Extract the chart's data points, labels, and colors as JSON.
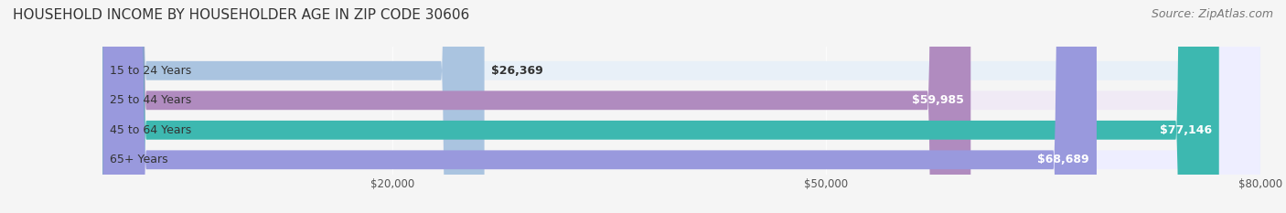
{
  "title": "HOUSEHOLD INCOME BY HOUSEHOLDER AGE IN ZIP CODE 30606",
  "source": "Source: ZipAtlas.com",
  "categories": [
    "15 to 24 Years",
    "25 to 44 Years",
    "45 to 64 Years",
    "65+ Years"
  ],
  "values": [
    26369,
    59985,
    77146,
    68689
  ],
  "labels": [
    "$26,369",
    "$59,985",
    "$77,146",
    "$68,689"
  ],
  "bar_colors": [
    "#aac4e0",
    "#b08bbf",
    "#3db8b0",
    "#9999dd"
  ],
  "bar_bg_colors": [
    "#e8f0f8",
    "#f0eaf5",
    "#e0f5f4",
    "#eeeeff"
  ],
  "xlim": [
    0,
    80000
  ],
  "xticks": [
    20000,
    50000,
    80000
  ],
  "xticklabels": [
    "$20,000",
    "$50,000",
    "$80,000"
  ],
  "background_color": "#f5f5f5",
  "title_fontsize": 11,
  "source_fontsize": 9,
  "label_fontsize": 9,
  "category_fontsize": 9
}
